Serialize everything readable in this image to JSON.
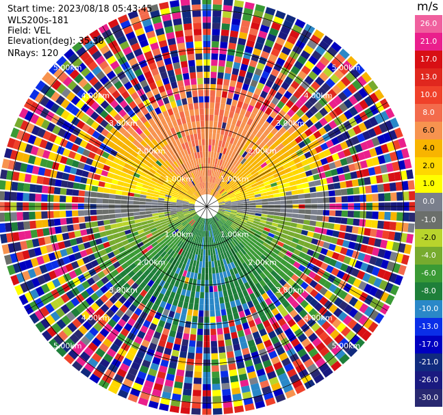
{
  "header": {
    "start_time": "Start time: 2023/08/18 05:43:45",
    "instrument": "WLS200s-181",
    "field": "Field: VEL",
    "elevation": "Elevation(deg): 35.30",
    "nrays": "NRays: 120"
  },
  "chart_data": {
    "type": "heatmap",
    "projection": "PPI (polar, north up)",
    "field": "VEL",
    "units": "m/s",
    "n_rays": 120,
    "elevation_deg": 35.3,
    "range_rings_km": [
      1.0,
      2.0,
      3.0,
      4.0,
      5.0
    ],
    "range_ring_labels": [
      "1.00km",
      "2.00km",
      "3.00km",
      "4.00km",
      "5.00km"
    ],
    "spoke_angles_deg": [
      0,
      30,
      60,
      90,
      120,
      150,
      180,
      210,
      240,
      270,
      300,
      330
    ],
    "max_range_km": 5.3,
    "colorbar": {
      "title": "m/s",
      "tick_labels": [
        "26.0",
        "21.0",
        "17.0",
        "13.0",
        "10.0",
        "8.0",
        "6.0",
        "4.0",
        "2.0",
        "1.0",
        "0.0",
        "-1.0",
        "-2.0",
        "-4.0",
        "-6.0",
        "-8.0",
        "-10.0",
        "-13.0",
        "-17.0",
        "-21.0",
        "-26.0",
        "-30.0"
      ],
      "colors": [
        "#f0609e",
        "#ea1f8c",
        "#d80f14",
        "#e0271e",
        "#f0412a",
        "#f36b4c",
        "#f7934f",
        "#f8b400",
        "#ffd800",
        "#ffff00",
        "#7a7f8c",
        "#6b6f6b",
        "#b9d42c",
        "#77ab2e",
        "#3a9a35",
        "#1e7f3a",
        "#2a88c8",
        "#0a2ee8",
        "#0000c0",
        "#102a7e",
        "#1a1a80",
        "#282870"
      ]
    },
    "velocity_pattern": {
      "north_sector": "positive (+4 to +8 m/s, orange/red near center)",
      "east_west_band": "near zero (+2 to 0 m/s, yellow/grey)",
      "south_sector": "negative (-2 to -8 m/s, green/blue)",
      "outer_range": "noisy / folded values beyond ~3.0 km"
    }
  }
}
